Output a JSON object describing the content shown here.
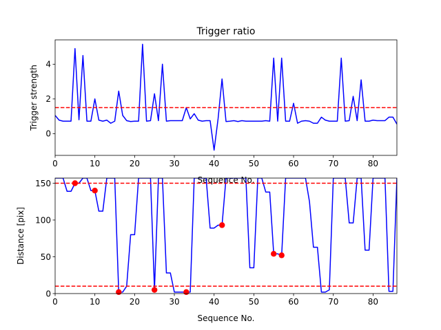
{
  "chart_data": [
    {
      "type": "line",
      "title": "Trigger ratio",
      "xlabel": "Sequence No.",
      "ylabel": "Trigger strength",
      "xlim": [
        0,
        86
      ],
      "ylim": [
        -1.25,
        5.4
      ],
      "xticks": [
        0,
        10,
        20,
        30,
        40,
        50,
        60,
        70,
        80
      ],
      "yticks": [
        0,
        2,
        4
      ],
      "grid": false,
      "series": [
        {
          "color": "#0000ff",
          "style": "solid",
          "x": [
            0,
            1,
            2,
            3,
            4,
            5,
            6,
            7,
            8,
            9,
            10,
            11,
            12,
            13,
            14,
            15,
            16,
            17,
            18,
            19,
            20,
            21,
            22,
            23,
            24,
            25,
            26,
            27,
            28,
            29,
            30,
            31,
            32,
            33,
            34,
            35,
            36,
            37,
            38,
            39,
            40,
            41,
            42,
            43,
            44,
            45,
            46,
            47,
            48,
            49,
            50,
            51,
            52,
            53,
            54,
            55,
            56,
            57,
            58,
            59,
            60,
            61,
            62,
            63,
            64,
            65,
            66,
            67,
            68,
            69,
            70,
            71,
            72,
            73,
            74,
            75,
            76,
            77,
            78,
            79,
            80,
            81,
            82,
            83,
            84,
            85,
            86
          ],
          "y": [
            1.05,
            0.78,
            0.72,
            0.72,
            0.72,
            4.9,
            0.8,
            4.5,
            0.72,
            0.72,
            2.0,
            0.78,
            0.72,
            0.78,
            0.6,
            0.72,
            2.45,
            1.05,
            0.75,
            0.7,
            0.72,
            0.72,
            5.15,
            0.72,
            0.75,
            2.3,
            0.75,
            4.0,
            0.72,
            0.75,
            0.75,
            0.75,
            0.75,
            1.5,
            0.85,
            1.15,
            0.78,
            0.72,
            0.75,
            0.75,
            -0.95,
            0.85,
            3.15,
            0.7,
            0.72,
            0.75,
            0.7,
            0.75,
            0.72,
            0.72,
            0.72,
            0.72,
            0.72,
            0.75,
            0.72,
            4.35,
            0.72,
            4.35,
            0.72,
            0.72,
            1.75,
            0.6,
            0.72,
            0.75,
            0.72,
            0.6,
            0.6,
            0.95,
            0.78,
            0.72,
            0.72,
            0.72,
            4.35,
            0.72,
            0.75,
            2.15,
            0.75,
            3.1,
            0.72,
            0.72,
            0.78,
            0.75,
            0.75,
            0.75,
            0.95,
            0.95,
            0.55
          ]
        }
      ],
      "hlines": [
        {
          "y": 1.5,
          "color": "#ff0000",
          "style": "dashed"
        }
      ]
    },
    {
      "type": "line",
      "xlabel": "Sequence No.",
      "ylabel": "Distance [pix]",
      "xlim": [
        0,
        86
      ],
      "ylim": [
        0,
        157
      ],
      "xticks": [
        0,
        10,
        20,
        30,
        40,
        50,
        60,
        70,
        80
      ],
      "yticks": [
        0,
        50,
        100,
        150
      ],
      "grid": false,
      "series": [
        {
          "color": "#0000ff",
          "style": "solid",
          "x": [
            0,
            1,
            2,
            3,
            4,
            5,
            6,
            7,
            8,
            9,
            10,
            11,
            12,
            13,
            14,
            15,
            16,
            17,
            18,
            19,
            20,
            21,
            22,
            23,
            24,
            25,
            26,
            27,
            28,
            29,
            30,
            31,
            32,
            33,
            34,
            35,
            36,
            37,
            38,
            39,
            40,
            41,
            42,
            43,
            44,
            45,
            46,
            47,
            48,
            49,
            50,
            51,
            52,
            53,
            54,
            55,
            56,
            57,
            58,
            59,
            60,
            61,
            62,
            63,
            64,
            65,
            66,
            67,
            68,
            69,
            70,
            71,
            72,
            73,
            74,
            75,
            76,
            77,
            78,
            79,
            80,
            81,
            82,
            83,
            84,
            85,
            86
          ],
          "y": [
            157,
            157,
            157,
            139,
            139,
            150,
            150,
            157,
            157,
            140,
            140,
            112,
            112,
            157,
            157,
            157,
            2,
            2,
            10,
            80,
            80,
            157,
            157,
            157,
            157,
            5,
            157,
            157,
            28,
            28,
            2,
            2,
            2,
            2,
            2,
            157,
            157,
            157,
            157,
            89,
            89,
            93,
            93,
            157,
            157,
            157,
            157,
            157,
            157,
            35,
            35,
            157,
            157,
            138,
            138,
            54,
            54,
            52,
            157,
            157,
            157,
            157,
            157,
            157,
            125,
            63,
            63,
            2,
            2,
            5,
            157,
            157,
            157,
            157,
            96,
            96,
            157,
            157,
            59,
            59,
            157,
            157,
            157,
            157,
            3,
            3,
            157
          ]
        }
      ],
      "hlines": [
        {
          "y": 150,
          "color": "#ff0000",
          "style": "dashed"
        },
        {
          "y": 10,
          "color": "#ff0000",
          "style": "dashed"
        }
      ],
      "points": {
        "color": "#ff0000",
        "x": [
          5,
          10,
          16,
          25,
          33,
          42,
          55,
          57
        ],
        "y": [
          150,
          140,
          2,
          5,
          2,
          93,
          54,
          52
        ]
      }
    }
  ]
}
